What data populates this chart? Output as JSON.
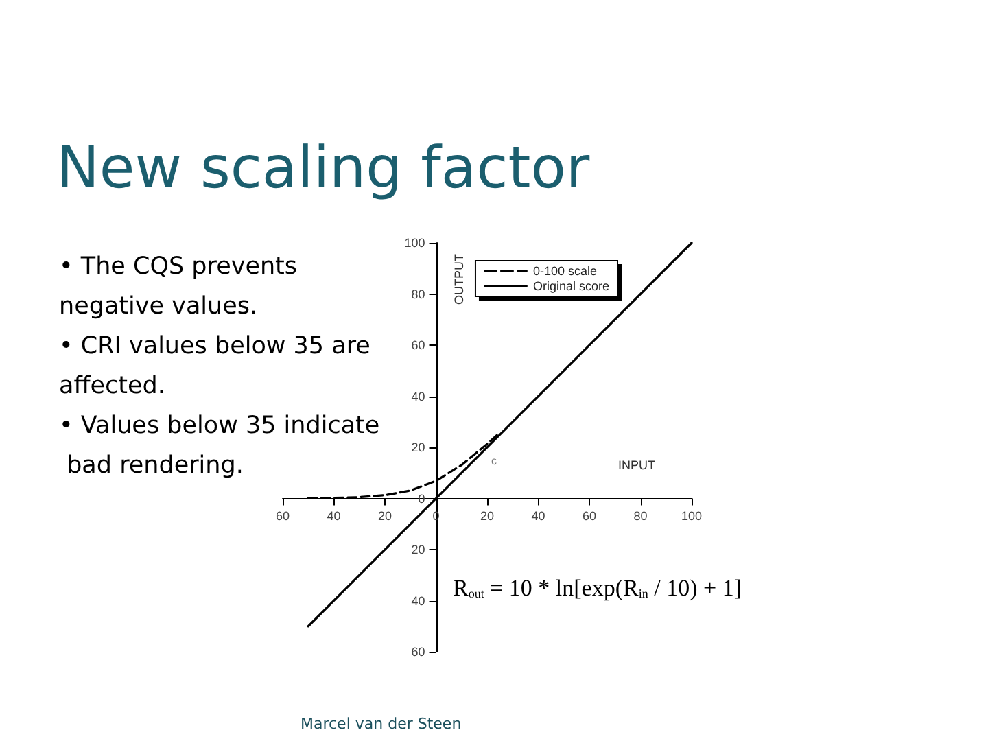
{
  "chart_data": {
    "type": "line",
    "title": "New scaling factor",
    "xlabel": "INPUT",
    "ylabel": "OUTPUT",
    "xlim": [
      -60,
      100
    ],
    "ylim": [
      -60,
      100
    ],
    "xticks": [
      {
        "value": -60,
        "label": "60"
      },
      {
        "value": -40,
        "label": "40"
      },
      {
        "value": -20,
        "label": "20"
      },
      0,
      20,
      40,
      60,
      80,
      100
    ],
    "yticks": [
      {
        "value": -60,
        "label": "60"
      },
      {
        "value": -40,
        "label": "40"
      },
      {
        "value": -20,
        "label": "20"
      },
      0,
      20,
      40,
      60,
      80,
      100
    ],
    "series": [
      {
        "name": "0-100 scale",
        "color": "#000000",
        "line_style": "dashed",
        "x": [
          -50,
          -40,
          -30,
          -20,
          -10,
          0,
          10,
          20,
          25
        ],
        "values": [
          0.1,
          0.2,
          0.5,
          1.3,
          3.1,
          6.9,
          13.1,
          21.3,
          25.8
        ]
      },
      {
        "name": "Original score",
        "color": "#000000",
        "line_style": "solid",
        "x": [
          -50,
          100
        ],
        "values": [
          -50,
          100
        ]
      }
    ],
    "legend": "top right",
    "marker": "none",
    "annotations": [
      "• The CQS prevents negative values.",
      "• CRI values below 35 are affected.",
      "• Values below 35 indicate bad rendering.",
      "c",
      "R$_{out}$ = 10 * ln[exp(R$_{in}$ / 10) + 1]",
      "Marcel van der Steen"
    ]
  }
}
